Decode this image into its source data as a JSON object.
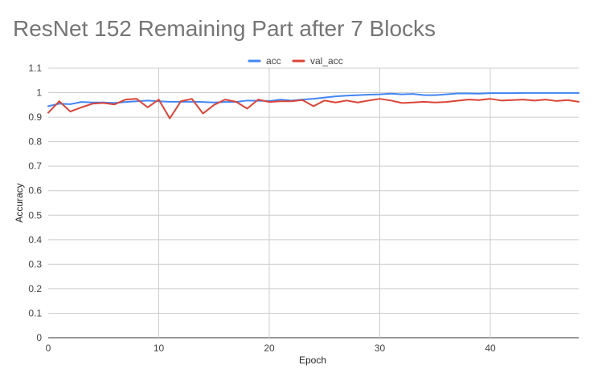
{
  "chart_data": {
    "type": "line",
    "title": "ResNet 152 Remaining Part after 7 Blocks",
    "xlabel": "Epoch",
    "ylabel": "Accuracy",
    "xlim": [
      0,
      48
    ],
    "ylim": [
      0,
      1.1
    ],
    "x_ticks": [
      0,
      10,
      20,
      30,
      40
    ],
    "x_tick_labels": [
      "0",
      "10",
      "20",
      "30",
      "40"
    ],
    "y_ticks": [
      0,
      0.1,
      0.2,
      0.3,
      0.4,
      0.5,
      0.6,
      0.7,
      0.8,
      0.9,
      1,
      1.1
    ],
    "y_tick_labels": [
      "0",
      "0.1",
      "0.2",
      "0.3",
      "0.4",
      "0.5",
      "0.6",
      "0.7",
      "0.8",
      "0.9",
      "1",
      "1.1"
    ],
    "grid": true,
    "legend": {
      "position": "top",
      "entries": [
        "acc",
        "val_acc"
      ]
    },
    "x": [
      0,
      1,
      2,
      3,
      4,
      5,
      6,
      7,
      8,
      9,
      10,
      11,
      12,
      13,
      14,
      15,
      16,
      17,
      18,
      19,
      20,
      21,
      22,
      23,
      24,
      25,
      26,
      27,
      28,
      29,
      30,
      31,
      32,
      33,
      34,
      35,
      36,
      37,
      38,
      39,
      40,
      41,
      42,
      43,
      44,
      45,
      46,
      47,
      48
    ],
    "series": [
      {
        "name": "acc",
        "color": "#4285f4",
        "values": [
          0.945,
          0.955,
          0.953,
          0.962,
          0.96,
          0.96,
          0.958,
          0.962,
          0.965,
          0.968,
          0.965,
          0.963,
          0.963,
          0.963,
          0.962,
          0.96,
          0.962,
          0.962,
          0.968,
          0.967,
          0.966,
          0.972,
          0.968,
          0.972,
          0.975,
          0.98,
          0.985,
          0.988,
          0.99,
          0.992,
          0.993,
          0.996,
          0.993,
          0.995,
          0.99,
          0.99,
          0.993,
          0.997,
          0.997,
          0.996,
          0.998,
          0.998,
          0.998,
          0.999,
          0.999,
          0.999,
          0.999,
          0.999,
          0.999
        ]
      },
      {
        "name": "val_acc",
        "color": "#db4437",
        "values": [
          0.918,
          0.965,
          0.923,
          0.94,
          0.955,
          0.958,
          0.952,
          0.972,
          0.975,
          0.94,
          0.972,
          0.895,
          0.965,
          0.975,
          0.915,
          0.95,
          0.972,
          0.963,
          0.935,
          0.972,
          0.962,
          0.965,
          0.965,
          0.97,
          0.945,
          0.968,
          0.96,
          0.968,
          0.96,
          0.968,
          0.975,
          0.968,
          0.958,
          0.96,
          0.963,
          0.96,
          0.962,
          0.967,
          0.972,
          0.97,
          0.975,
          0.968,
          0.97,
          0.972,
          0.968,
          0.972,
          0.966,
          0.97,
          0.963
        ]
      }
    ]
  }
}
